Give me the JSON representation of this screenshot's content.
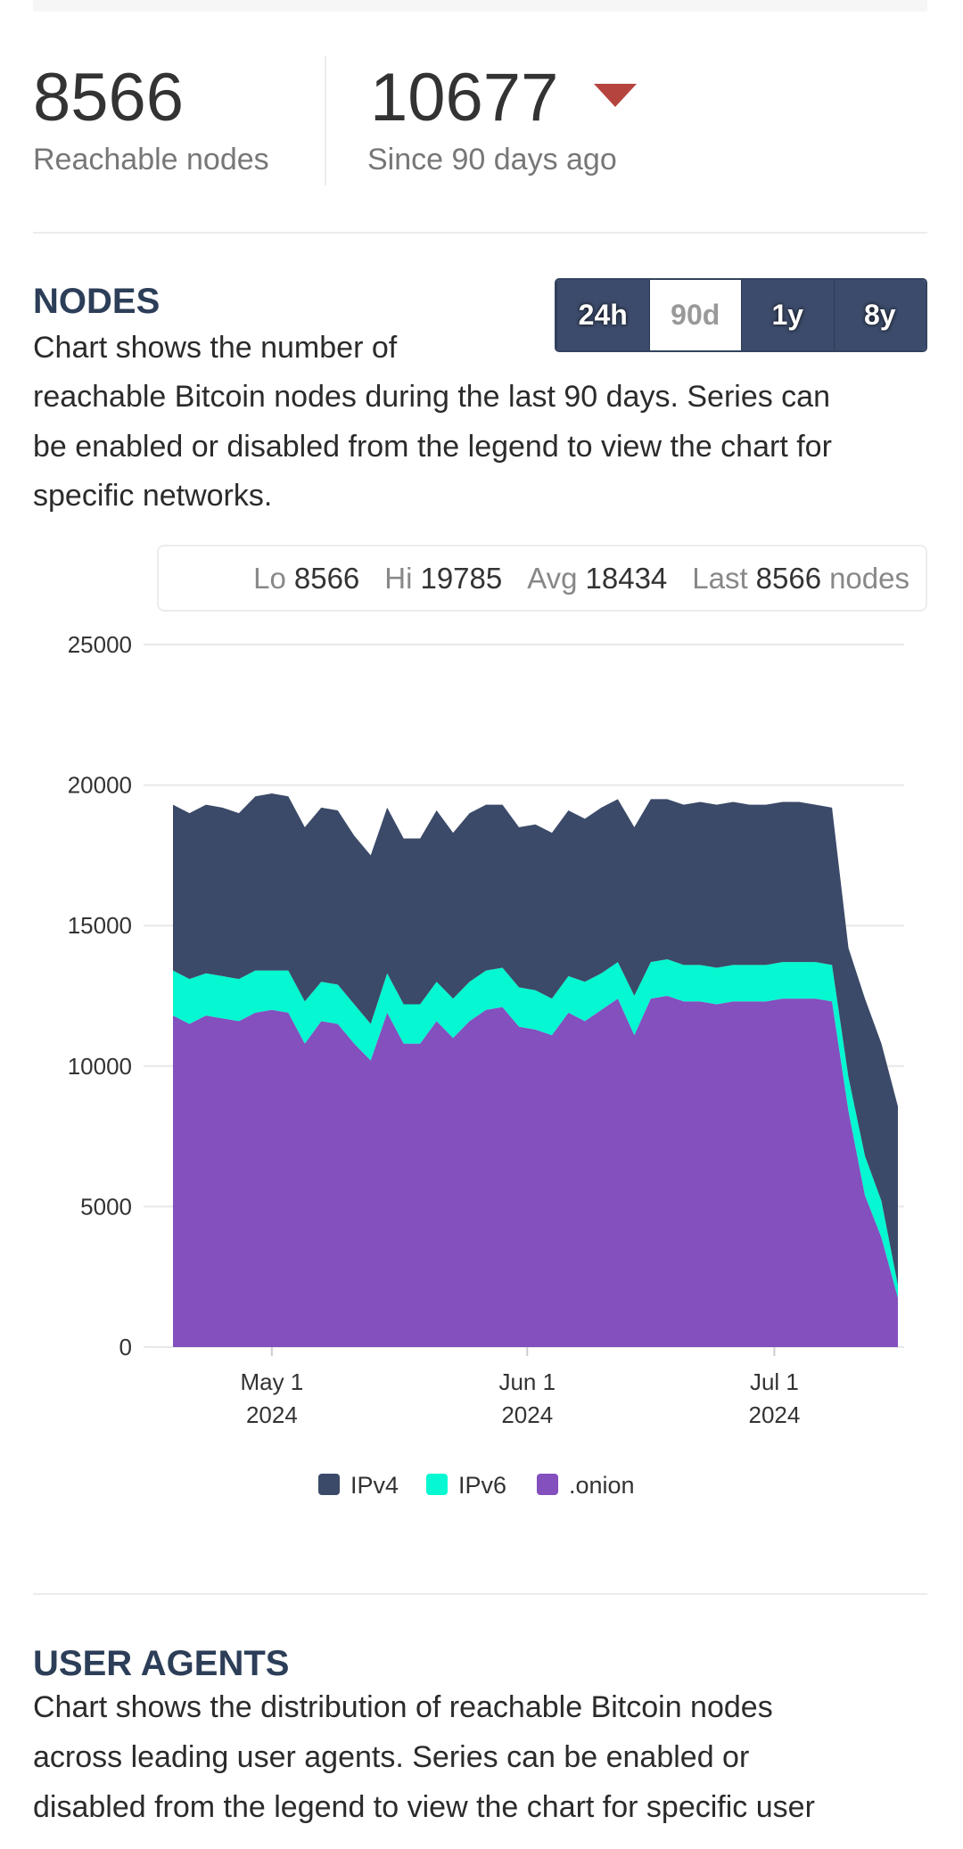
{
  "stats": {
    "current": {
      "value": "8566",
      "label": "Reachable nodes"
    },
    "previous": {
      "value": "10677",
      "label": "Since 90 days ago"
    }
  },
  "nodes_section": {
    "title": "NODES",
    "description_lines": [
      "Chart shows the number of",
      "reachable Bitcoin nodes during the last 90 days. Series can",
      "be enabled or disabled from the legend to view the chart for",
      "specific networks."
    ],
    "buttons": [
      "24h",
      "90d",
      "1y",
      "8y"
    ],
    "selected_button": 1,
    "summary": [
      {
        "label": "Lo",
        "value": "8566"
      },
      {
        "label": "Hi",
        "value": "19785"
      },
      {
        "label": "Avg",
        "value": "18434"
      },
      {
        "label": "Last",
        "value": "8566"
      }
    ],
    "summary_unit": "nodes"
  },
  "chart_data": {
    "type": "stacked_area",
    "x": [
      "2024-04-19",
      "2024-04-21",
      "2024-04-23",
      "2024-04-25",
      "2024-04-27",
      "2024-04-29",
      "2024-05-01",
      "2024-05-03",
      "2024-05-05",
      "2024-05-07",
      "2024-05-09",
      "2024-05-11",
      "2024-05-13",
      "2024-05-15",
      "2024-05-17",
      "2024-05-19",
      "2024-05-21",
      "2024-05-23",
      "2024-05-25",
      "2024-05-27",
      "2024-05-29",
      "2024-05-31",
      "2024-06-02",
      "2024-06-04",
      "2024-06-06",
      "2024-06-08",
      "2024-06-10",
      "2024-06-12",
      "2024-06-14",
      "2024-06-16",
      "2024-06-18",
      "2024-06-20",
      "2024-06-22",
      "2024-06-24",
      "2024-06-26",
      "2024-06-28",
      "2024-06-30",
      "2024-07-02",
      "2024-07-04",
      "2024-07-06",
      "2024-07-08",
      "2024-07-10",
      "2024-07-12",
      "2024-07-14",
      "2024-07-16"
    ],
    "series": [
      {
        "name": "IPv4",
        "color": "#3b4a68",
        "values": [
          5900,
          5900,
          6000,
          6000,
          5900,
          6200,
          6300,
          6200,
          6200,
          6200,
          6200,
          6000,
          6000,
          5900,
          5900,
          5900,
          6100,
          5900,
          6000,
          5900,
          5800,
          5700,
          5900,
          5900,
          5900,
          5800,
          5900,
          5800,
          6000,
          5800,
          5700,
          5700,
          5800,
          5800,
          5800,
          5700,
          5700,
          5700,
          5700,
          5600,
          5600,
          4600,
          5600,
          5600,
          6366
        ]
      },
      {
        "name": "IPv6",
        "color": "#05f8d1",
        "values": [
          1600,
          1600,
          1500,
          1500,
          1500,
          1500,
          1400,
          1500,
          1500,
          1400,
          1400,
          1400,
          1300,
          1400,
          1400,
          1400,
          1400,
          1400,
          1400,
          1400,
          1400,
          1400,
          1400,
          1300,
          1300,
          1400,
          1300,
          1300,
          1400,
          1300,
          1300,
          1300,
          1300,
          1300,
          1300,
          1300,
          1300,
          1300,
          1300,
          1300,
          1300,
          1200,
          1400,
          1300,
          450
        ]
      },
      {
        "name": ".onion",
        "color": "#8350be",
        "values": [
          11800,
          11500,
          11800,
          11700,
          11600,
          11900,
          12000,
          11900,
          10800,
          11600,
          11500,
          10800,
          10200,
          11900,
          10800,
          10800,
          11600,
          11000,
          11600,
          12000,
          12100,
          11400,
          11300,
          11100,
          11900,
          11600,
          12000,
          12400,
          11100,
          12400,
          12500,
          12300,
          12300,
          12200,
          12300,
          12300,
          12300,
          12400,
          12400,
          12400,
          12300,
          8400,
          5400,
          3900,
          1750
        ]
      }
    ],
    "xlim": [
      "2024-04-19",
      "2024-07-16"
    ],
    "xticks": [
      {
        "value": "2024-05-01",
        "label": [
          "May 1",
          "2024"
        ]
      },
      {
        "value": "2024-06-01",
        "label": [
          "Jun 1",
          "2024"
        ]
      },
      {
        "value": "2024-07-01",
        "label": [
          "Jul 1",
          "2024"
        ]
      }
    ],
    "ylim": [
      0,
      25000
    ],
    "yticks": [
      0,
      5000,
      10000,
      15000,
      20000,
      25000
    ],
    "grid": true,
    "legend": "bottom"
  },
  "agents_section": {
    "title": "USER AGENTS",
    "description_lines": [
      "Chart shows the distribution of reachable Bitcoin nodes",
      "across leading user agents. Series can be enabled or",
      "disabled from the legend to view the chart for specific user"
    ]
  }
}
